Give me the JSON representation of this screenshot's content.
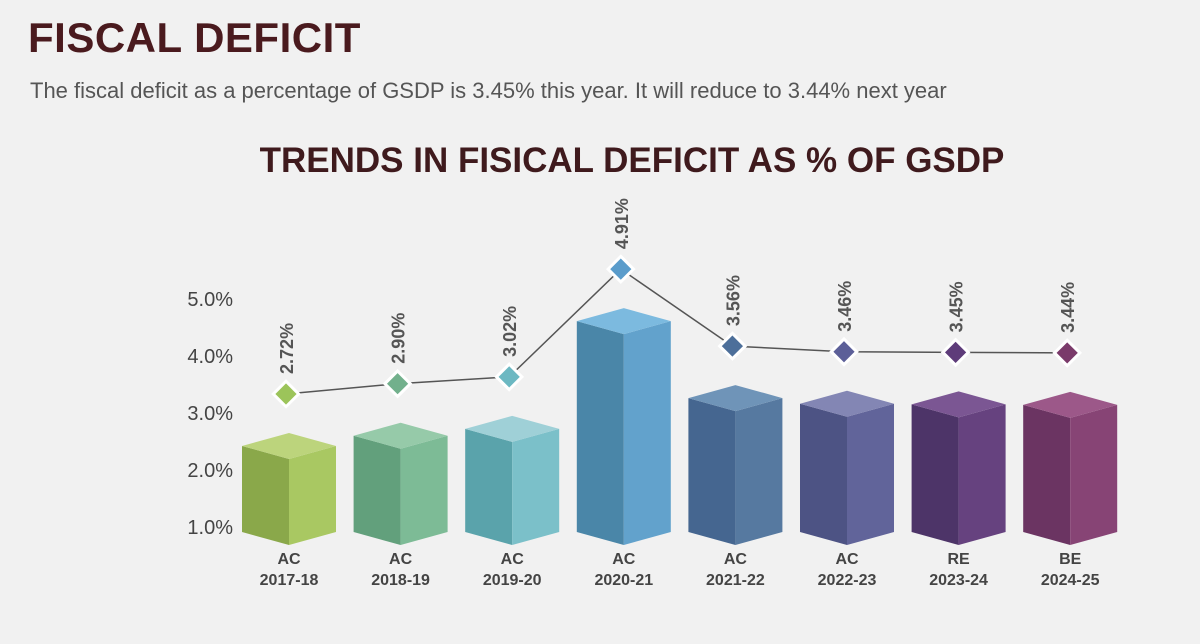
{
  "header": {
    "title": "FISCAL DEFICIT",
    "subtitle": "The fiscal deficit as a percentage of GSDP is 3.45% this year. It will reduce to 3.44% next year"
  },
  "chart_data": {
    "type": "bar",
    "title": "TRENDS IN FISICAL DEFICIT AS % OF GSDP",
    "xlabel": "",
    "ylabel": "",
    "ylim": [
      1.0,
      5.0
    ],
    "yticks": [
      "5.0%",
      "4.0%",
      "3.0%",
      "2.0%",
      "1.0%"
    ],
    "ytick_values": [
      5,
      4,
      3,
      2,
      1
    ],
    "grid": false,
    "categories": [
      {
        "type": "AC",
        "year": "2017-18"
      },
      {
        "type": "AC",
        "year": "2018-19"
      },
      {
        "type": "AC",
        "year": "2019-20"
      },
      {
        "type": "AC",
        "year": "2020-21"
      },
      {
        "type": "AC",
        "year": "2021-22"
      },
      {
        "type": "AC",
        "year": "2022-23"
      },
      {
        "type": "RE",
        "year": "2023-24"
      },
      {
        "type": "BE",
        "year": "2024-25"
      }
    ],
    "values": [
      2.72,
      2.9,
      3.02,
      4.91,
      3.56,
      3.46,
      3.45,
      3.44
    ],
    "data_labels": [
      "2.72%",
      "2.90%",
      "3.02%",
      "4.91%",
      "3.56%",
      "3.46%",
      "3.45%",
      "3.44%"
    ],
    "line_overlay": true,
    "colors": [
      {
        "left": "#8aa84a",
        "right": "#a9c862",
        "top": "#bcd47c",
        "marker": "#9cc45a"
      },
      {
        "left": "#62a07c",
        "right": "#7dbb96",
        "top": "#96caa9",
        "marker": "#72b08c"
      },
      {
        "left": "#5aa3ab",
        "right": "#7bc0c9",
        "top": "#9fd0d7",
        "marker": "#6cb8c2"
      },
      {
        "left": "#4a86a8",
        "right": "#62a2cc",
        "top": "#7cbadf",
        "marker": "#5a9ccb"
      },
      {
        "left": "#456690",
        "right": "#5679a0",
        "top": "#6f94b8",
        "marker": "#4d6f9a"
      },
      {
        "left": "#4d5384",
        "right": "#61649a",
        "top": "#8386b4",
        "marker": "#5c5f98"
      },
      {
        "left": "#4d3468",
        "right": "#66427f",
        "top": "#7b5693",
        "marker": "#5e3c7a"
      },
      {
        "left": "#6b3462",
        "right": "#874475",
        "top": "#9c5889",
        "marker": "#7a3a6a"
      }
    ]
  }
}
